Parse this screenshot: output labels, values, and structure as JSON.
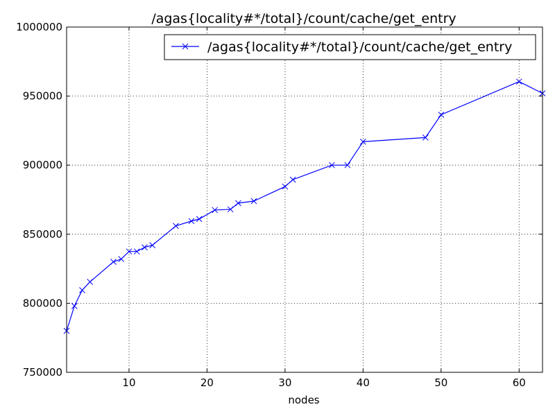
{
  "chart_data": {
    "type": "line",
    "title": "/agas{locality#*/total}/count/cache/get_entry",
    "xlabel": "nodes",
    "ylabel": "",
    "xlim": [
      2,
      63
    ],
    "ylim": [
      750000,
      1000000
    ],
    "x_ticks": [
      10,
      20,
      30,
      40,
      50,
      60
    ],
    "x_tick_labels": [
      "10",
      "20",
      "30",
      "40",
      "50",
      "60"
    ],
    "y_ticks": [
      750000,
      800000,
      850000,
      900000,
      950000,
      1000000
    ],
    "y_tick_labels": [
      "750000",
      "800000",
      "850000",
      "900000",
      "950000",
      "1000000"
    ],
    "grid": true,
    "legend_position": "top-right",
    "series": [
      {
        "name": "/agas{locality#*/total}/count/cache/get_entry",
        "color": "#0000ff",
        "marker": "x",
        "x": [
          2,
          3,
          4,
          5,
          8,
          9,
          10,
          11,
          12,
          13,
          16,
          18,
          19,
          21,
          23,
          24,
          26,
          30,
          31,
          36,
          38,
          40,
          48,
          50,
          60,
          63
        ],
        "y": [
          780000,
          798000,
          809500,
          815500,
          830000,
          832000,
          837500,
          837500,
          840500,
          842000,
          856000,
          859500,
          861000,
          867500,
          868000,
          872500,
          874000,
          884500,
          889500,
          900000,
          900000,
          917000,
          920000,
          936500,
          960500,
          952000
        ]
      }
    ]
  }
}
